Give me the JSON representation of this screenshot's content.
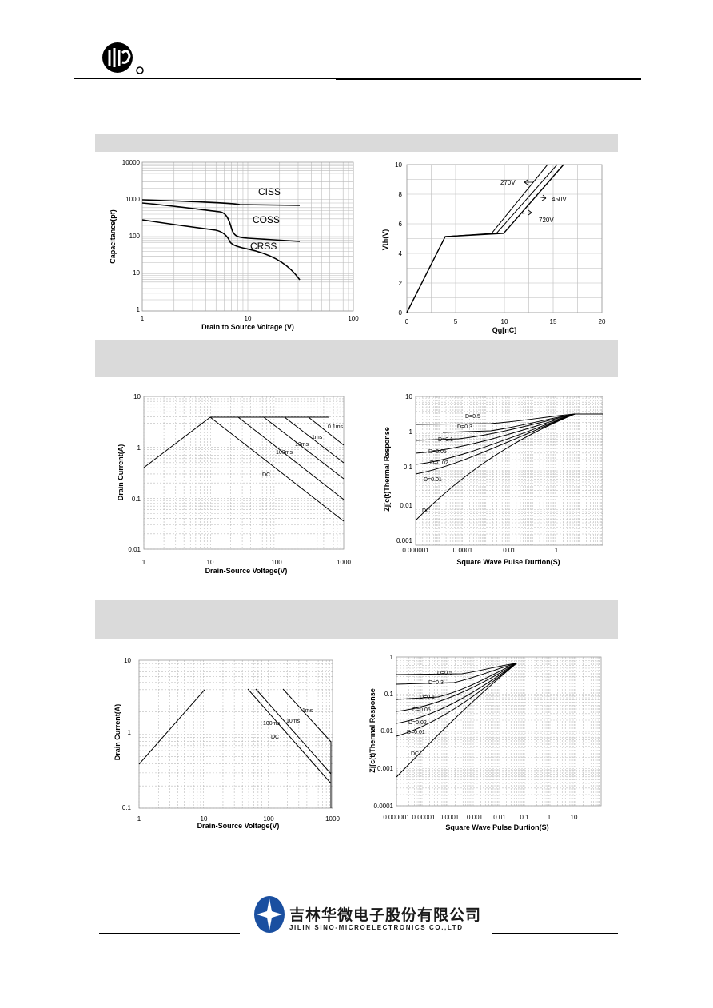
{
  "header": {
    "logo_icon": "company-monogram-logo"
  },
  "footer": {
    "company_cn": "吉林华微电子股份有限公司",
    "company_en": "JILIN SINO-MICROELECTRONICS CO.,LTD",
    "logo_icon": "star-emblem-logo"
  },
  "charts": {
    "cap": {
      "ylabel": "Capacitance(pf)",
      "xlabel": "Drain to Source Voltage (V)",
      "xticks": [
        "1",
        "10",
        "100"
      ],
      "yticks": [
        "10000",
        "1000",
        "100",
        "10",
        "1"
      ],
      "labels": {
        "ciss": "CISS",
        "coss": "COSS",
        "crss": "CRSS"
      }
    },
    "gate": {
      "ylabel": "Vth(V)",
      "xlabel": "Qg[nC]",
      "xticks": [
        "0",
        "5",
        "10",
        "15",
        "20"
      ],
      "yticks": [
        "10",
        "8",
        "6",
        "4",
        "2",
        "0"
      ],
      "labels": {
        "v270": "270V",
        "v450": "450V",
        "v720": "720V"
      }
    },
    "soa1": {
      "ylabel": "Drain Current(A)",
      "xlabel": "Drain-Source Voltage(V)",
      "xticks": [
        "1",
        "10",
        "100",
        "1000"
      ],
      "yticks": [
        "10",
        "1",
        "0.1",
        "0.01"
      ],
      "labels": {
        "dc": "DC",
        "ms100": "100ms",
        "ms10": "10ms",
        "ms1": "1ms",
        "ms01": "0.1ms"
      }
    },
    "zth1": {
      "ylabel": "Zj[c(t)Thermal Response",
      "xlabel": "Square Wave Pulse Durtion(S)",
      "xticks": [
        "0.000001",
        "0.0001",
        "0.01",
        "1"
      ],
      "yticks": [
        "10",
        "1",
        "0.1",
        "0.01",
        "0.001"
      ],
      "labels": {
        "d05": "D=0.5",
        "d03": "D=0.3",
        "d01": "D=0.1",
        "d005": "D=0.05",
        "d002": "D=0.02",
        "d001": "D=0.01",
        "dc": "DC"
      }
    },
    "soa2": {
      "ylabel": "Drain Current(A)",
      "xlabel": "Drain-Source Voltage(V)",
      "xticks": [
        "1",
        "10",
        "100",
        "1000"
      ],
      "yticks": [
        "10",
        "1",
        "0.1"
      ],
      "labels": {
        "dc": "DC",
        "ms100": "100ms",
        "ms10": "10ms",
        "ms1": "1ms"
      }
    },
    "zth2": {
      "ylabel": "Zj[c(t)Thermal Response",
      "xlabel": "Square Wave Pulse Durtion(S)",
      "xticks": [
        "0.000001",
        "0.00001",
        "0.0001",
        "0.001",
        "0.01",
        "0.1",
        "1",
        "10"
      ],
      "yticks": [
        "1",
        "0.1",
        "0.01",
        "0.001",
        "0.0001"
      ],
      "labels": {
        "d05": "D=0.5",
        "d03": "D=0.3",
        "d01": "D=0.1",
        "d005": "D=0.05",
        "d002": "D=0.02",
        "d001": "D=0.01",
        "dc": "DC"
      }
    }
  }
}
